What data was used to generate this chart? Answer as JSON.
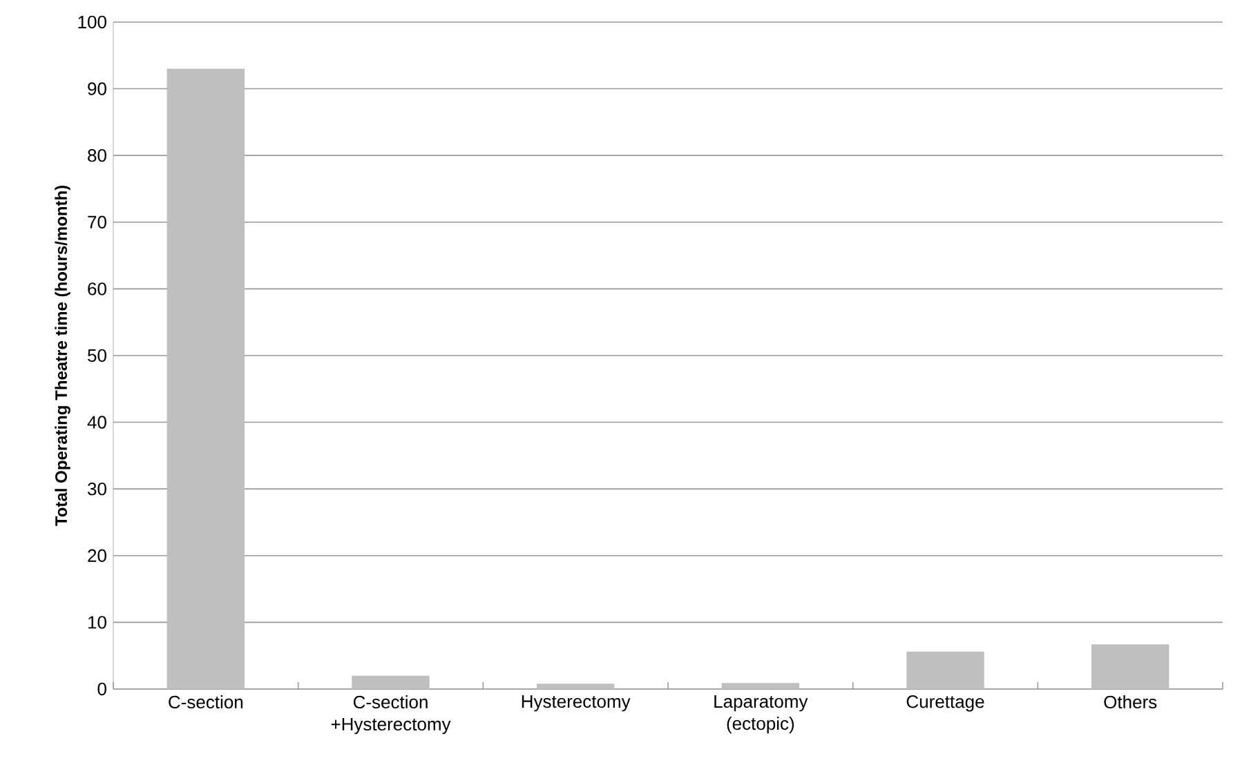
{
  "chart_data": {
    "type": "bar",
    "ylabel": "Total Operating Theatre time (hours/month)",
    "categories": [
      "C-section",
      "C-section +Hysterectomy",
      "Hysterectomy",
      "Laparatomy (ectopic)",
      "Curettage",
      "Others"
    ],
    "values": [
      93,
      2.0,
      0.8,
      0.9,
      5.6,
      6.7
    ],
    "color": "#bfbfbf",
    "ylim": [
      0,
      100
    ],
    "yticks": [
      0,
      10,
      20,
      30,
      40,
      50,
      60,
      70,
      80,
      90,
      100
    ],
    "grid": "y"
  }
}
